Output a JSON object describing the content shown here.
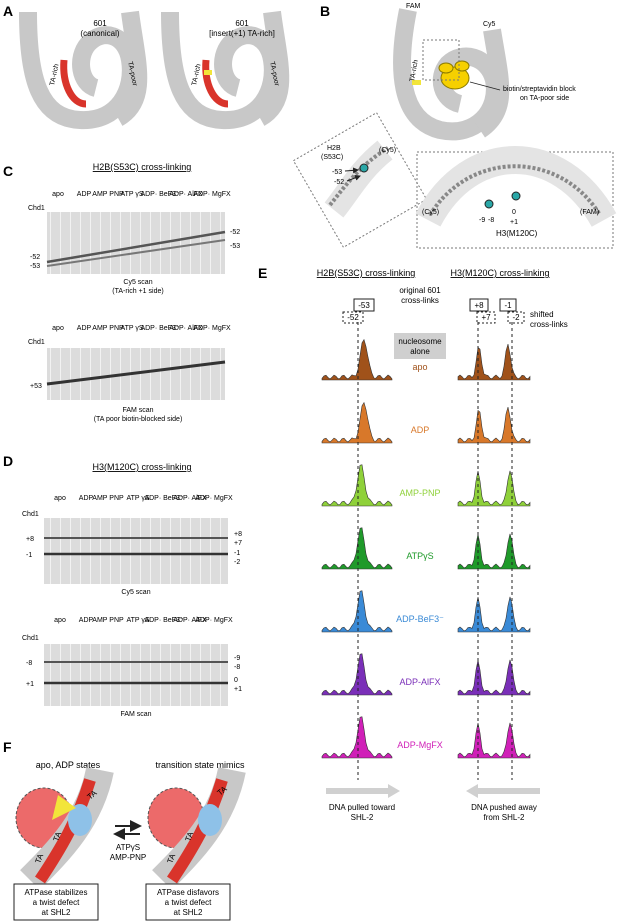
{
  "panels": {
    "a": "A",
    "b": "B",
    "c": "C",
    "d": "D",
    "e": "E",
    "f": "F"
  },
  "a": {
    "left_title": "601",
    "left_sub": "(canonical)",
    "right_title": "601",
    "right_sub": "[insert(+1) TA-rich]",
    "ta_rich": "TA-rich",
    "ta_poor": "TA-poor"
  },
  "b": {
    "fam": "FAM",
    "cy5": "Cy5",
    "ta_rich": "TA-rich",
    "block_line1": "biotin/streptavidin block",
    "block_line2": "on TA-poor side",
    "h2b_line1": "H2B",
    "h2b_line2": "(S53C)",
    "cy5_label": "(Cy5)",
    "m53": "-53",
    "m52": "-52",
    "zoom2_cy5": "(Cy5)",
    "zoom2_fam": "(FAM)",
    "m9": "-9",
    "m8": "-8",
    "z0": "0",
    "p1": "+1",
    "h3": "H3(M120C)"
  },
  "c": {
    "title": "H2B(S53C) cross-linking",
    "lanes": [
      "apo",
      "ADP",
      "AMP PNP",
      "ATP γS",
      "ADP· BeF3⁻",
      "ADP· AlFX",
      "ADP· MgFX"
    ],
    "chd1": "Chd1",
    "minus": "-",
    "plus": "+",
    "gel1_left_top": "-52",
    "gel1_left_bot": "-53",
    "gel1_right_top": "-52",
    "gel1_right_bot": "-53",
    "gel1_caption1": "Cy5 scan",
    "gel1_caption2": "(TA-rich +1 side)",
    "gel2_left": "+53",
    "gel2_caption1": "FAM scan",
    "gel2_caption2": "(TA poor biotin-blocked side)"
  },
  "d": {
    "title": "H3(M120C) cross-linking",
    "gel1_left_top": "+8",
    "gel1_left_bot": "-1",
    "gel1_right_a": "+8",
    "gel1_right_b": "+7",
    "gel1_right_c": "-1",
    "gel1_right_d": "-2",
    "gel1_caption": "Cy5 scan",
    "gel2_left_top": "-8",
    "gel2_left_bot": "+1",
    "gel2_right_a": "-9",
    "gel2_right_b": "-8",
    "gel2_right_c": "0",
    "gel2_right_d": "+1",
    "gel2_caption": "FAM scan"
  },
  "e": {
    "title_left": "H2B(S53C) cross-linking",
    "title_right": "H3(M120C) cross-linking",
    "original": "original 601",
    "original2": "cross-links",
    "shifted": "shifted",
    "shifted2": "cross-links",
    "b53": "-53",
    "b52": "-52",
    "b8": "+8",
    "b7": "+7",
    "bm1": "-1",
    "bm2": "-2",
    "alone1": "nucleosome",
    "alone2": "alone",
    "states": [
      "apo",
      "ADP",
      "AMP-PNP",
      "ATPγS",
      "ADP-BeF3⁻",
      "ADP-AlFX",
      "ADP-MgFX"
    ],
    "colors": [
      "#a0521a",
      "#d8782a",
      "#8fd13a",
      "#1f9a2a",
      "#3a8ad6",
      "#7a2fb8",
      "#d020b8"
    ],
    "arrow_left1": "DNA pulled toward",
    "arrow_left2": "SHL-2",
    "arrow_right1": "DNA pushed away",
    "arrow_right2": "from SHL-2"
  },
  "f": {
    "left_title": "apo, ADP states",
    "right_title": "transition state mimics",
    "ta": "TA",
    "mid1": "ATPγS",
    "mid2": "AMP-PNP",
    "left_box1": "ATPase stabilizes",
    "left_box2": "a twist defect",
    "left_box3": "at SHL2",
    "right_box1": "ATPase disfavors",
    "right_box2": "a twist defect",
    "right_box3": "at SHL2"
  }
}
